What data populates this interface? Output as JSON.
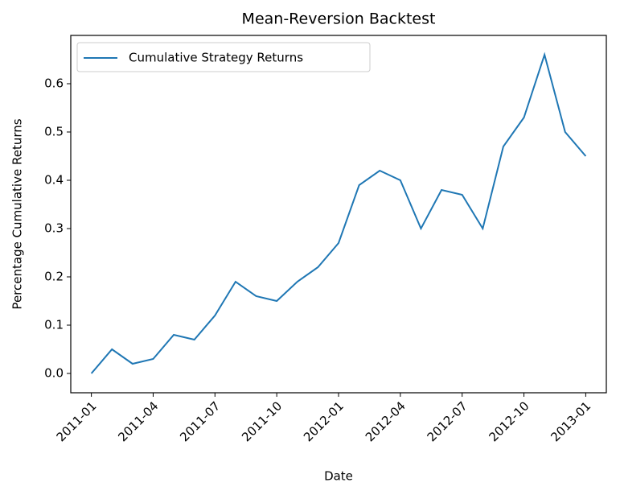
{
  "chart_data": {
    "type": "line",
    "title": "Mean-Reversion Backtest",
    "xlabel": "Date",
    "ylabel": "Percentage Cumulative Returns",
    "x": [
      "2011-01",
      "2011-02",
      "2011-03",
      "2011-04",
      "2011-05",
      "2011-06",
      "2011-07",
      "2011-08",
      "2011-09",
      "2011-10",
      "2011-11",
      "2011-12",
      "2012-01",
      "2012-02",
      "2012-03",
      "2012-04",
      "2012-05",
      "2012-06",
      "2012-07",
      "2012-08",
      "2012-09",
      "2012-10",
      "2012-11",
      "2012-12",
      "2013-01"
    ],
    "series": [
      {
        "name": "Cumulative Strategy Returns",
        "color": "#1f77b4",
        "values": [
          0.0,
          0.05,
          0.02,
          0.03,
          0.08,
          0.07,
          0.12,
          0.19,
          0.16,
          0.15,
          0.19,
          0.22,
          0.27,
          0.39,
          0.42,
          0.4,
          0.3,
          0.38,
          0.37,
          0.3,
          0.47,
          0.53,
          0.66,
          0.5,
          0.45
        ]
      }
    ],
    "xlim": [
      "2010-12",
      "2013-02"
    ],
    "xticks": [
      "2011-01",
      "2011-04",
      "2011-07",
      "2011-10",
      "2012-01",
      "2012-04",
      "2012-07",
      "2012-10",
      "2013-01"
    ],
    "ylim": [
      -0.04,
      0.7
    ],
    "yticks": [
      {
        "value": 0,
        "label": "0.0"
      },
      0.1,
      0.2,
      0.3,
      0.4,
      0.5,
      0.6
    ],
    "legend": "upper left",
    "grid": false
  }
}
